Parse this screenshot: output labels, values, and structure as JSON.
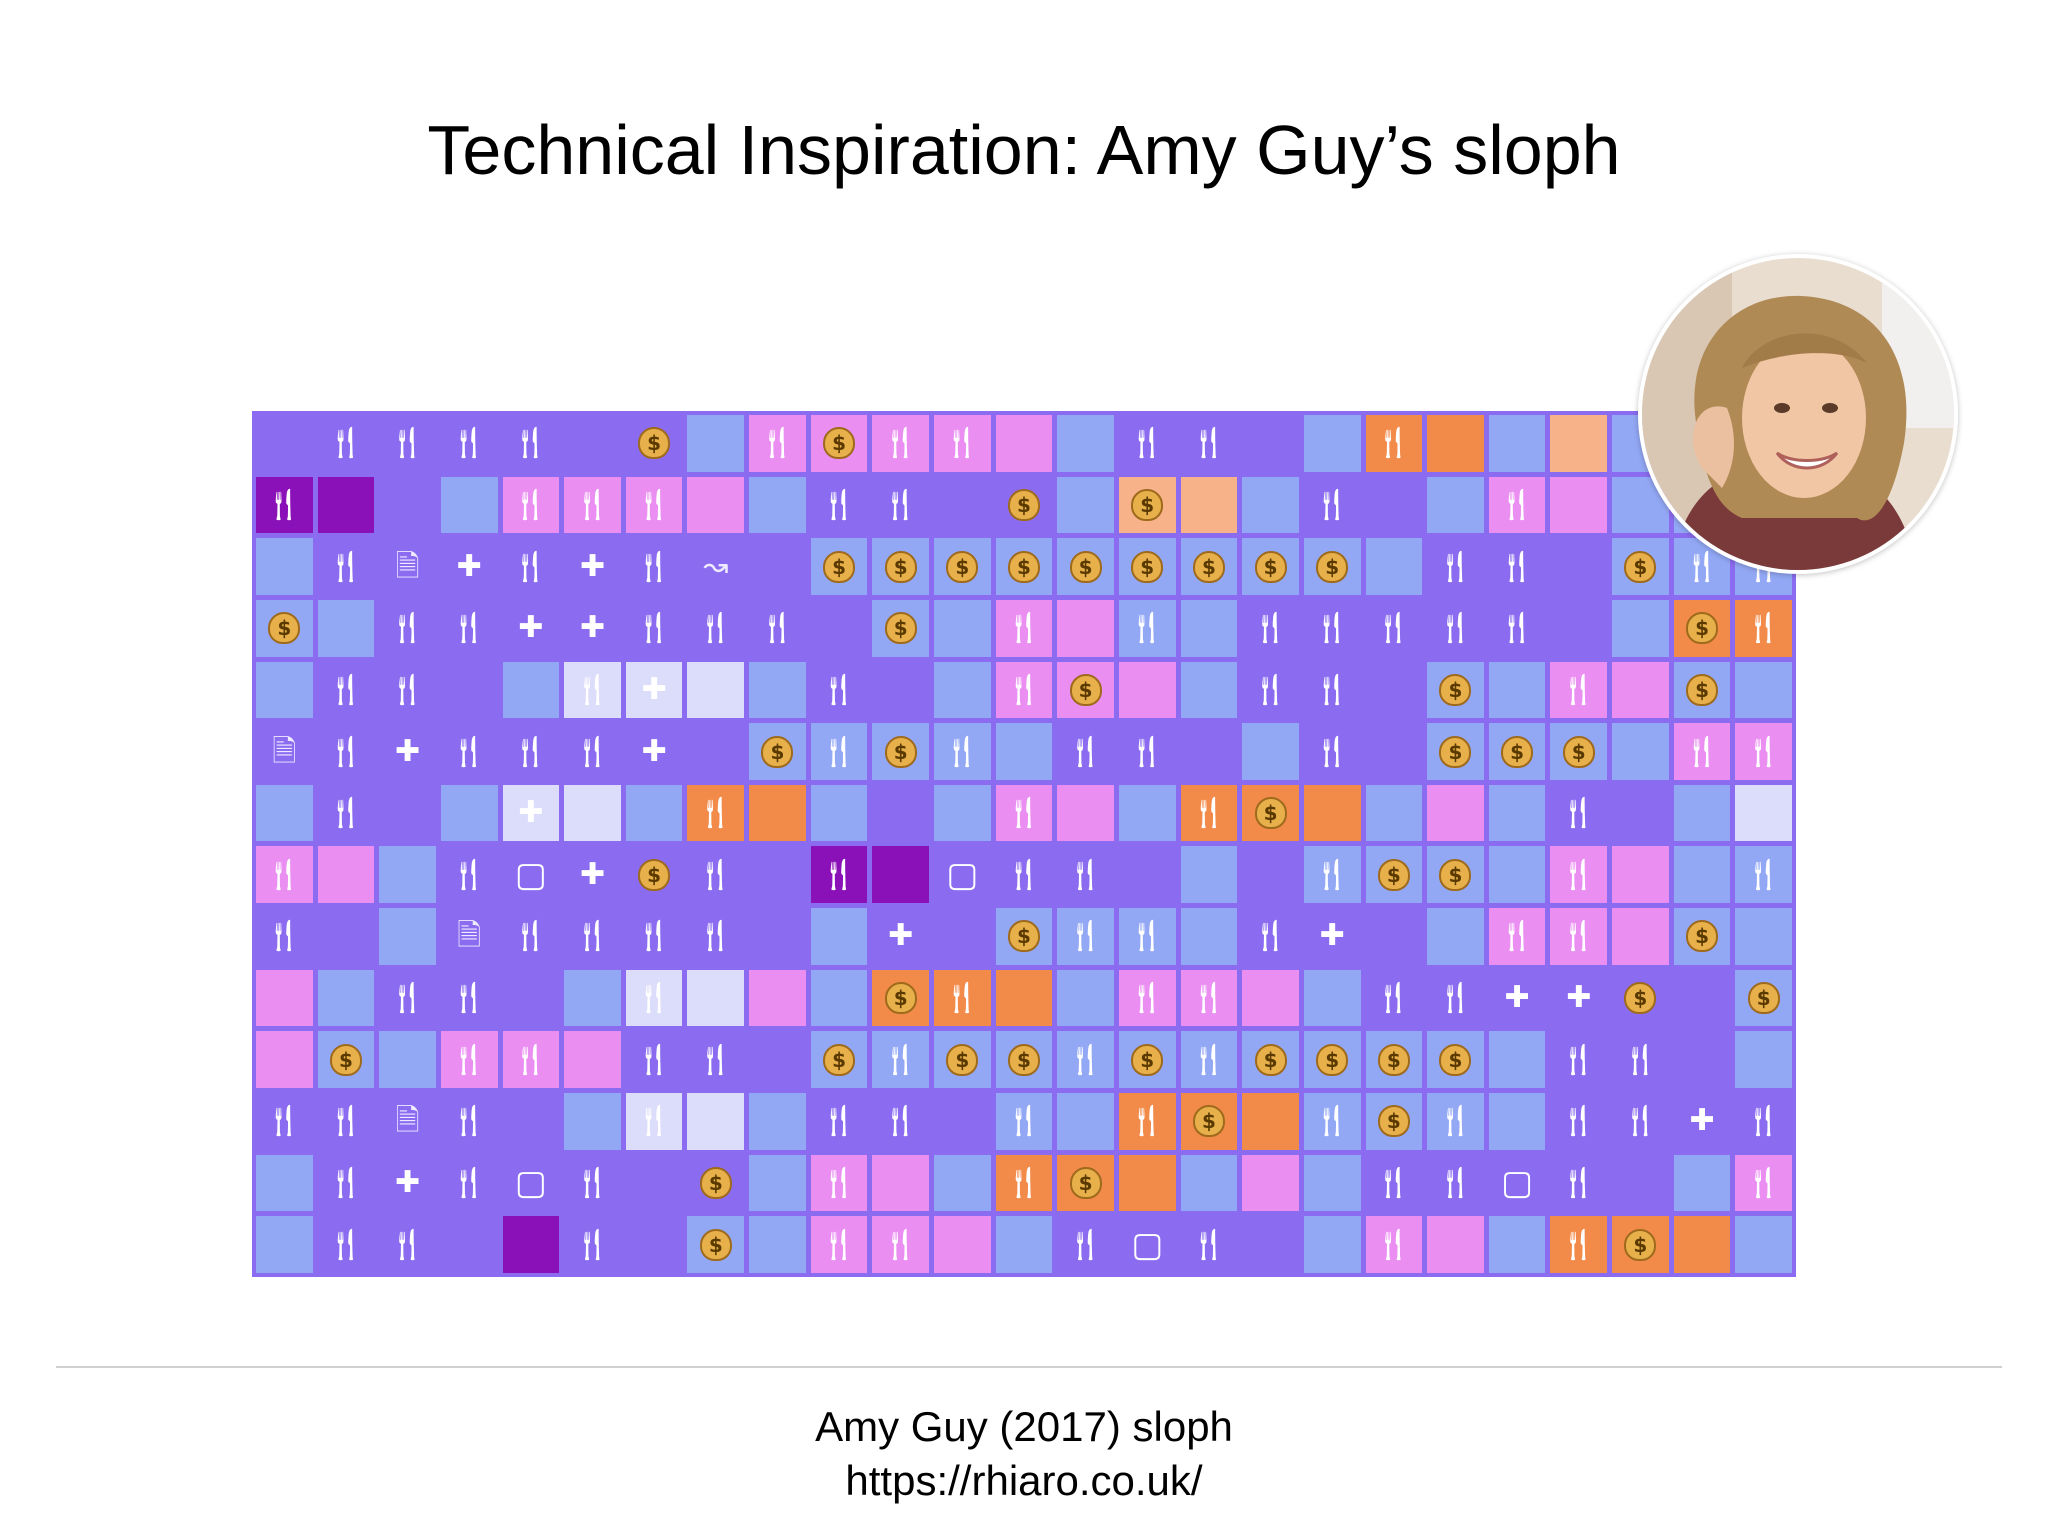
{
  "slide": {
    "title": "Technical Inspiration: Amy Guy’s sloph",
    "caption_line1": "Amy Guy (2017) sloph",
    "caption_line2": "https://rhiaro.co.uk/"
  },
  "mosaic": {
    "background": "#8b6cf0",
    "tile_colors": {
      "p": "#8b6cf0",
      "b": "#93a8f5",
      "k": "#ea8ef2",
      "o": "#f28a4a",
      "a": "#f7b28a",
      "d": "#8a10b8",
      "l": "#dcdcfb"
    },
    "icons": {
      "f": "fork-knife-icon",
      "$": "money-bag-icon",
      "+": "plus-icon",
      "D": "document-icon",
      "S": "square-icon",
      "~": "squiggle-arrow-icon"
    },
    "rows": [
      "p. pf pf pf pf p. p$ b. kf k$ kf kf k. b. pf pf p. b. of o. b. a. b. b. b.",
      "df d. p. b. kf kf kf k. b. pf pf p. p$ b. a$ a. b. pf p. b. kf k. b. b. b.",
      "b. pf pD p+ pf p+ pf p~ p. b$ b$ b$ b$ b$ b$ b$ b$ b$ b. pf pf p. b$ bf bf",
      "b$ b. pf pf p+ p+ pf pf pf p. b$ b. kf k. bf b. pf pf pf pf pf p. b. o$ of",
      "b. pf pf p. b. lf l+ l. b. pf p. b. kf k$ k. b. pf pf p. b$ b. kf k. b$ b.",
      "pD pf p+ pf pf pf p+ p. b$ bf b$ bf b. pf pf p. b. pf p. b$ b$ b$ b. kf kf",
      "b. pf p. b. l+ l. b. of o. b. p. b. kf k. b. of o$ o. b. k. b. pf p. b. l.",
      "kf k. b. pf pS p+ p$ pf p. df d. pS pf pf p. b. p. bf b$ b$ b. kf k. b. bf",
      "pf p. b. pD pf pf pf pf p. b. p+ p. b$ bf bf b. pf p+ p. b. kf kf k. b$ b.",
      "k. b. pf pf p. b. lf l. k. b. o$ of o. b. kf kf k. b. pf pf p+ p+ p$ p. b$",
      "k. b$ b. kf kf k. pf pf p. b$ bf b$ b$ bf b$ bf b$ b$ b$ b$ b. pf pf p. b.",
      "pf pf pD pf p. b. lf l. b. pf pf p. bf b. of o$ o. bf b$ bf b. pf pf p+ pf",
      "b. pf p+ pf pS pf p. p$ b. kf k. b. of o$ o. b. k. b. pf pf pS pf p. b. kf",
      "b. pf pf p. d. pf p. b$ b. kf kf k. b. pf pS pf p. b. kf k. b. of o$ o. b."
    ]
  }
}
